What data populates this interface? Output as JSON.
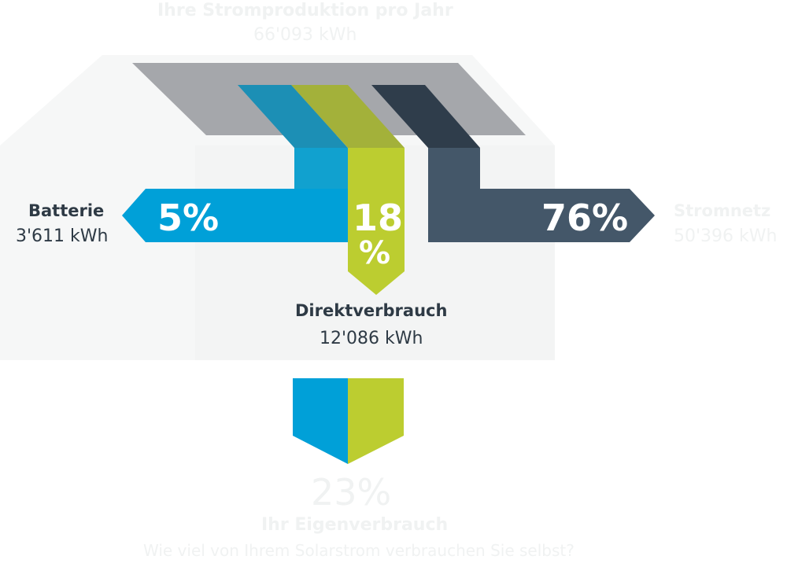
{
  "production": {
    "title": "Ihre Stromproduktion pro Jahr",
    "value": "66'093 kWh"
  },
  "battery": {
    "label": "Batterie",
    "value": "3'611 kWh",
    "percent": "5%"
  },
  "direct": {
    "label": "Direktverbrauch",
    "value": "12'086 kWh",
    "percent_top": "18",
    "percent_bottom": "%"
  },
  "grid": {
    "label": "Stromnetz",
    "value": "50'396 kWh",
    "percent": "76%"
  },
  "self_consumption": {
    "percent": "23%",
    "label": "Ihr Eigenverbrauch",
    "question": "Wie viel von Ihrem Solarstrom verbrauchen Sie selbst?"
  },
  "colors": {
    "roof": "#a5a7ab",
    "battery": "#00a0d8",
    "battery_dark": "#1c8fb5",
    "direct": "#bccd30",
    "direct_dark": "#a3b13a",
    "grid": "#445769",
    "grid_dark": "#2f3d4b",
    "house": "#f6f7f7",
    "text_dark": "#2e3a45",
    "text_faint": "#f0f2f2"
  }
}
